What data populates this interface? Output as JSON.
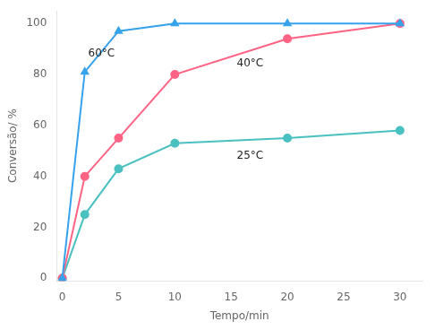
{
  "chart_data": {
    "type": "line",
    "xlabel": "Tempo/min",
    "ylabel": "Conversão/ %",
    "x": [
      0,
      2,
      5,
      10,
      20,
      30
    ],
    "series": [
      {
        "name": "60°C",
        "marker": "triangle",
        "values": [
          0,
          81,
          97,
          100,
          100,
          100
        ]
      },
      {
        "name": "40°C",
        "marker": "circle",
        "values": [
          0,
          40,
          55,
          80,
          94,
          100
        ]
      },
      {
        "name": "25°C",
        "marker": "square",
        "values": [
          0,
          25,
          43,
          53,
          55,
          58
        ]
      }
    ],
    "annotations": [
      {
        "text": "60°C",
        "x": 2.3,
        "y": 86
      },
      {
        "text": "40°C",
        "x": 15.5,
        "y": 82
      },
      {
        "text": "25°C",
        "x": 15.5,
        "y": 46
      }
    ],
    "xlim": [
      -0.5,
      32
    ],
    "ylim": [
      -1,
      105
    ],
    "xticks": [
      0,
      5,
      10,
      15,
      20,
      25,
      30
    ],
    "yticks": [
      0,
      20,
      40,
      60,
      80,
      100
    ],
    "grid": false,
    "legend": false
  }
}
